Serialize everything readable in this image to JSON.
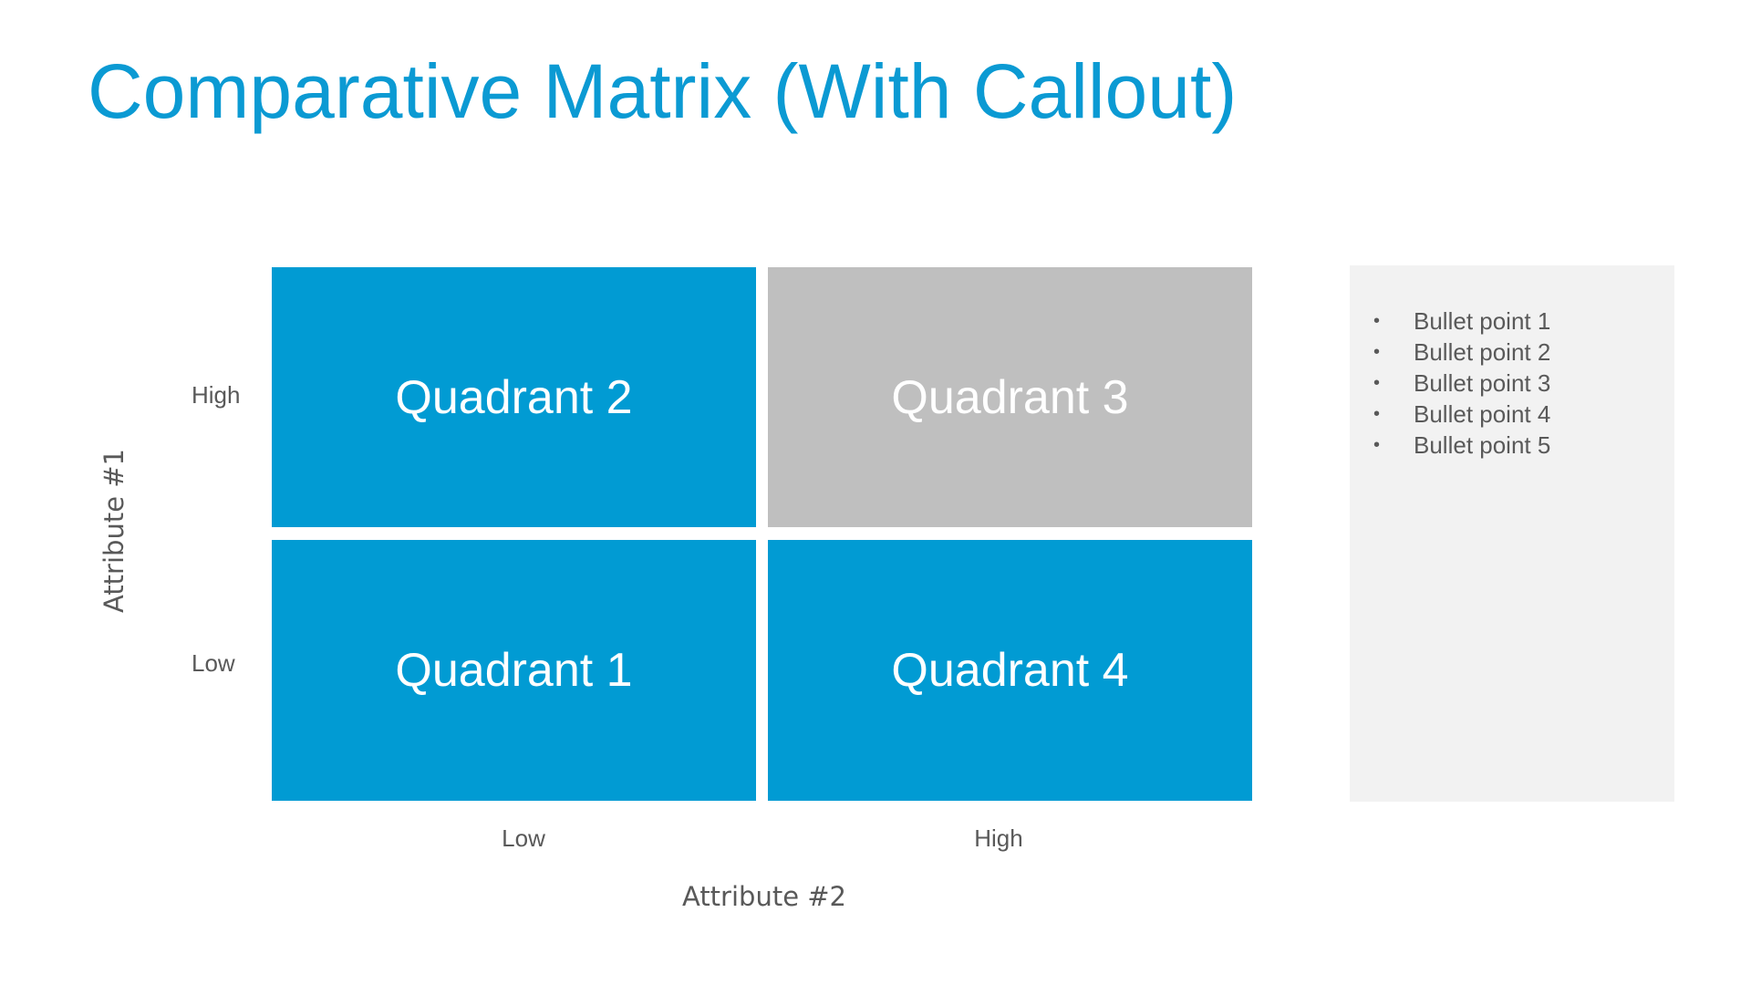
{
  "title": "Comparative Matrix (With Callout)",
  "quadrants": {
    "q1": "Quadrant 1",
    "q2": "Quadrant 2",
    "q3": "Quadrant 3",
    "q4": "Quadrant 4"
  },
  "y_axis": {
    "label": "Attribute #1",
    "high": "High",
    "low": "Low"
  },
  "x_axis": {
    "label": "Attribute #2",
    "low": "Low",
    "high": "High"
  },
  "callout": {
    "bullet_glyph": "•",
    "bullets": [
      "Bullet point 1",
      "Bullet point 2",
      "Bullet point 3",
      "Bullet point 4",
      "Bullet point 5"
    ]
  },
  "colors": {
    "title": "#0b9ad3",
    "quadrant_blue": "#019bd3",
    "quadrant_grey": "#bfbfbf",
    "callout_bg": "#f2f2f2",
    "text_grey": "#595959"
  }
}
